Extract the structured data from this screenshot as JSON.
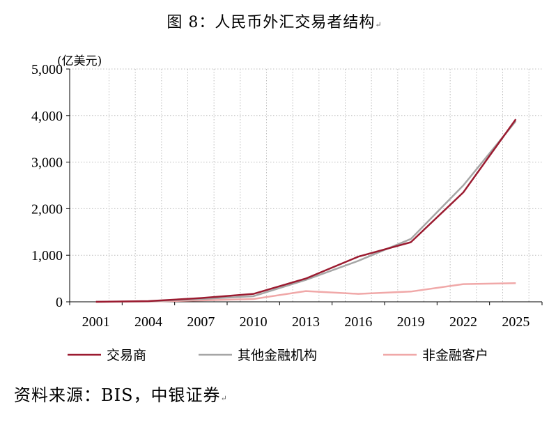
{
  "figure": {
    "title": "图 8：人民币外汇交易者结构",
    "return_mark": "↵",
    "source": "资料来源：BIS，中银证券"
  },
  "chart_data": {
    "type": "line",
    "title": "图 8：人民币外汇交易者结构",
    "ylabel": "(亿美元)",
    "xlabel": "",
    "x": [
      "2001",
      "2004",
      "2007",
      "2010",
      "2013",
      "2016",
      "2019",
      "2022",
      "2025"
    ],
    "xticks": [
      "2001",
      "2004",
      "2007",
      "2010",
      "2013",
      "2016",
      "2019",
      "2022",
      "2025"
    ],
    "x_values": [
      2001,
      2004,
      2007,
      2010,
      2013,
      2016,
      2019,
      2022,
      2025
    ],
    "ylim": [
      0,
      5000
    ],
    "yticks": [
      0,
      1000,
      2000,
      3000,
      4000,
      5000
    ],
    "ytick_labels": [
      "0",
      "1,000",
      "2,000",
      "3,000",
      "4,000",
      "5,000"
    ],
    "grid": true,
    "legend_position": "bottom",
    "series": [
      {
        "name": "交易商",
        "color": "#9b1b30",
        "x": [
          2001,
          2004,
          2007,
          2010,
          2013,
          2016,
          2019,
          2022,
          2025
        ],
        "values": [
          0,
          15,
          80,
          170,
          500,
          970,
          1280,
          2350,
          3920
        ]
      },
      {
        "name": "其他金融机构",
        "color": "#a6a6a6",
        "x": [
          2001,
          2004,
          2007,
          2010,
          2013,
          2016,
          2019,
          2022,
          2025
        ],
        "values": [
          0,
          10,
          60,
          120,
          470,
          880,
          1350,
          2500,
          3880
        ]
      },
      {
        "name": "非金融客户",
        "color": "#f0a8a8",
        "x": [
          2001,
          2004,
          2007,
          2010,
          2013,
          2016,
          2019,
          2022,
          2025
        ],
        "values": [
          0,
          5,
          30,
          60,
          230,
          170,
          220,
          380,
          400
        ]
      }
    ]
  }
}
